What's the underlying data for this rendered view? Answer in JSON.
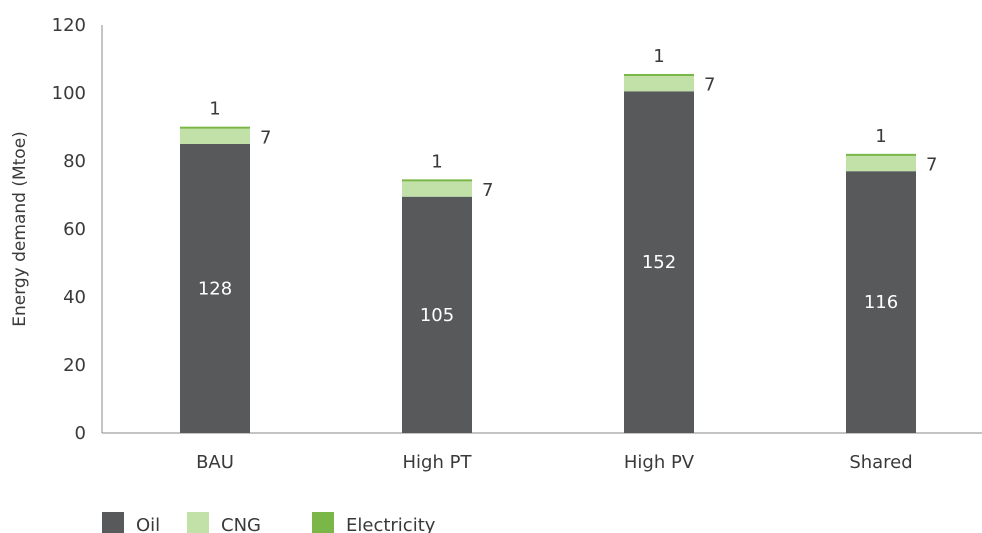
{
  "chart_data": {
    "type": "bar",
    "stacked": true,
    "categories": [
      "BAU",
      "High PT",
      "High PV",
      "Shared"
    ],
    "series": [
      {
        "name": "Oil",
        "values": [
          85,
          69.5,
          100.5,
          77
        ],
        "labels": [
          "128",
          "105",
          "152",
          "116"
        ],
        "color": "#58595b"
      },
      {
        "name": "CNG",
        "values": [
          4.5,
          4.5,
          4.5,
          4.5
        ],
        "labels": [
          "7",
          "7",
          "7",
          "7"
        ],
        "color": "#c2e1a8"
      },
      {
        "name": "Electricity",
        "values": [
          0.6,
          0.6,
          0.6,
          0.6
        ],
        "labels": [
          "1",
          "1",
          "1",
          "1"
        ],
        "color": "#7ab648"
      }
    ],
    "ylabel": "Energy demand (Mtoe)",
    "xlabel": "",
    "ylim": [
      0,
      120
    ],
    "yticks": [
      "0",
      "20",
      "40",
      "60",
      "80",
      "100",
      "120"
    ],
    "grid": false,
    "legend_position": "bottom-left"
  }
}
